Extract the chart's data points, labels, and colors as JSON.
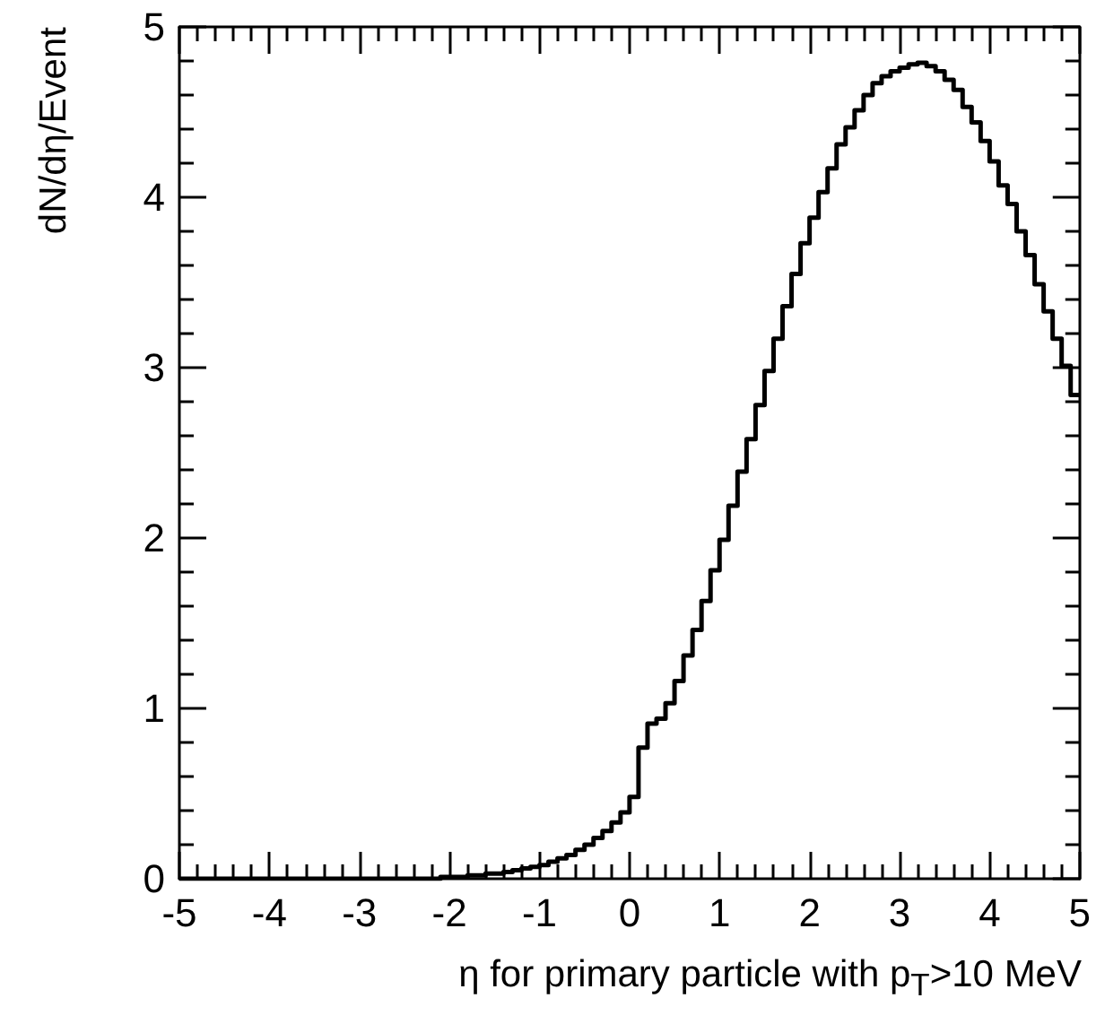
{
  "chart_data": {
    "type": "step",
    "xlabel": "η for primary particle with p$_{T}$>10 MeV",
    "ylabel": "dN/dη/Event",
    "color": "#000000",
    "marker": "none",
    "x": [
      -5,
      -4.9,
      -4.8,
      -4.7,
      -4.6,
      -4.5,
      -4.4,
      -4.3,
      -4.2,
      -4.1,
      -4,
      -3.9,
      -3.8,
      -3.7,
      -3.6,
      -3.5,
      -3.4,
      -3.3,
      -3.2,
      -3.1,
      -3,
      -2.9,
      -2.8,
      -2.7,
      -2.6,
      -2.5,
      -2.4,
      -2.3,
      -2.2,
      -2.1,
      -2,
      -1.9,
      -1.8,
      -1.7,
      -1.6,
      -1.5,
      -1.4,
      -1.3,
      -1.2,
      -1.1,
      -1,
      -0.9,
      -0.8,
      -0.7,
      -0.6,
      -0.5,
      -0.4,
      -0.3,
      -0.2,
      -0.1,
      0,
      0.1,
      0.2,
      0.3,
      0.4,
      0.5,
      0.6,
      0.7,
      0.8,
      0.9,
      1,
      1.1,
      1.2,
      1.3,
      1.4,
      1.5,
      1.6,
      1.7,
      1.8,
      1.9,
      2,
      2.1,
      2.2,
      2.3,
      2.4,
      2.5,
      2.6,
      2.7,
      2.8,
      2.9,
      3,
      3.1,
      3.2,
      3.3,
      3.4,
      3.5,
      3.6,
      3.7,
      3.8,
      3.9,
      4,
      4.1,
      4.2,
      4.3,
      4.4,
      4.5,
      4.6,
      4.7,
      4.8,
      4.9,
      5
    ],
    "values": [
      0,
      0,
      0,
      0,
      0,
      0,
      0,
      0,
      0,
      0,
      0,
      0,
      0,
      0,
      0,
      0,
      0,
      0,
      0,
      0,
      0,
      0,
      0,
      0,
      0,
      0,
      0,
      0,
      0,
      0.01,
      0.01,
      0.01,
      0.02,
      0.02,
      0.03,
      0.03,
      0.04,
      0.05,
      0.06,
      0.07,
      0.08,
      0.1,
      0.12,
      0.14,
      0.17,
      0.2,
      0.24,
      0.28,
      0.33,
      0.39,
      0.48,
      0.77,
      0.91,
      0.94,
      1.03,
      1.16,
      1.31,
      1.46,
      1.63,
      1.81,
      1.99,
      2.19,
      2.39,
      2.58,
      2.78,
      2.98,
      3.17,
      3.36,
      3.55,
      3.73,
      3.88,
      4.03,
      4.17,
      4.31,
      4.41,
      4.51,
      4.6,
      4.67,
      4.71,
      4.74,
      4.76,
      4.78,
      4.79,
      4.77,
      4.74,
      4.69,
      4.63,
      4.53,
      4.44,
      4.33,
      4.21,
      4.07,
      3.96,
      3.8,
      3.66,
      3.49,
      3.33,
      3.17,
      3.01,
      2.84,
      2.84
    ],
    "xlim": [
      -5,
      5
    ],
    "xticks": [
      -5,
      {
        "value": -4.8,
        "label": null
      },
      {
        "value": -4.6,
        "label": null
      },
      {
        "value": -4.4,
        "label": null
      },
      {
        "value": -4.2,
        "label": null
      },
      -4,
      {
        "value": -3.8,
        "label": null
      },
      {
        "value": -3.6,
        "label": null
      },
      {
        "value": -3.4,
        "label": null
      },
      {
        "value": -3.2,
        "label": null
      },
      -3,
      {
        "value": -2.8,
        "label": null
      },
      {
        "value": -2.6,
        "label": null
      },
      {
        "value": -2.4,
        "label": null
      },
      {
        "value": -2.2,
        "label": null
      },
      -2,
      {
        "value": -1.8,
        "label": null
      },
      {
        "value": -1.6,
        "label": null
      },
      {
        "value": -1.4,
        "label": null
      },
      {
        "value": -1.2,
        "label": null
      },
      -1,
      {
        "value": -0.8,
        "label": null
      },
      {
        "value": -0.6,
        "label": null
      },
      {
        "value": -0.4,
        "label": null
      },
      {
        "value": -0.2,
        "label": null
      },
      0,
      {
        "value": 0.2,
        "label": null
      },
      {
        "value": 0.4,
        "label": null
      },
      {
        "value": 0.6,
        "label": null
      },
      {
        "value": 0.8,
        "label": null
      },
      1,
      {
        "value": 1.2,
        "label": null
      },
      {
        "value": 1.4,
        "label": null
      },
      {
        "value": 1.6,
        "label": null
      },
      {
        "value": 1.8,
        "label": null
      },
      2,
      {
        "value": 2.2,
        "label": null
      },
      {
        "value": 2.4,
        "label": null
      },
      {
        "value": 2.6,
        "label": null
      },
      {
        "value": 2.8,
        "label": null
      },
      3,
      {
        "value": 3.2,
        "label": null
      },
      {
        "value": 3.4,
        "label": null
      },
      {
        "value": 3.6,
        "label": null
      },
      {
        "value": 3.8,
        "label": null
      },
      4,
      {
        "value": 4.2,
        "label": null
      },
      {
        "value": 4.4,
        "label": null
      },
      {
        "value": 4.6,
        "label": null
      },
      {
        "value": 4.8,
        "label": null
      },
      5
    ],
    "ylim": [
      0,
      5
    ],
    "yticks": [
      0,
      {
        "value": 0.2,
        "label": null
      },
      {
        "value": 0.4,
        "label": null
      },
      {
        "value": 0.6,
        "label": null
      },
      {
        "value": 0.8,
        "label": null
      },
      1,
      {
        "value": 1.2,
        "label": null
      },
      {
        "value": 1.4,
        "label": null
      },
      {
        "value": 1.6,
        "label": null
      },
      {
        "value": 1.8,
        "label": null
      },
      2,
      {
        "value": 2.2,
        "label": null
      },
      {
        "value": 2.4,
        "label": null
      },
      {
        "value": 2.6,
        "label": null
      },
      {
        "value": 2.8,
        "label": null
      },
      3,
      {
        "value": 3.2,
        "label": null
      },
      {
        "value": 3.4,
        "label": null
      },
      {
        "value": 3.6,
        "label": null
      },
      {
        "value": 3.8,
        "label": null
      },
      4,
      {
        "value": 4.2,
        "label": null
      },
      {
        "value": 4.4,
        "label": null
      },
      {
        "value": 4.6,
        "label": null
      },
      {
        "value": 4.8,
        "label": null
      },
      5
    ]
  }
}
